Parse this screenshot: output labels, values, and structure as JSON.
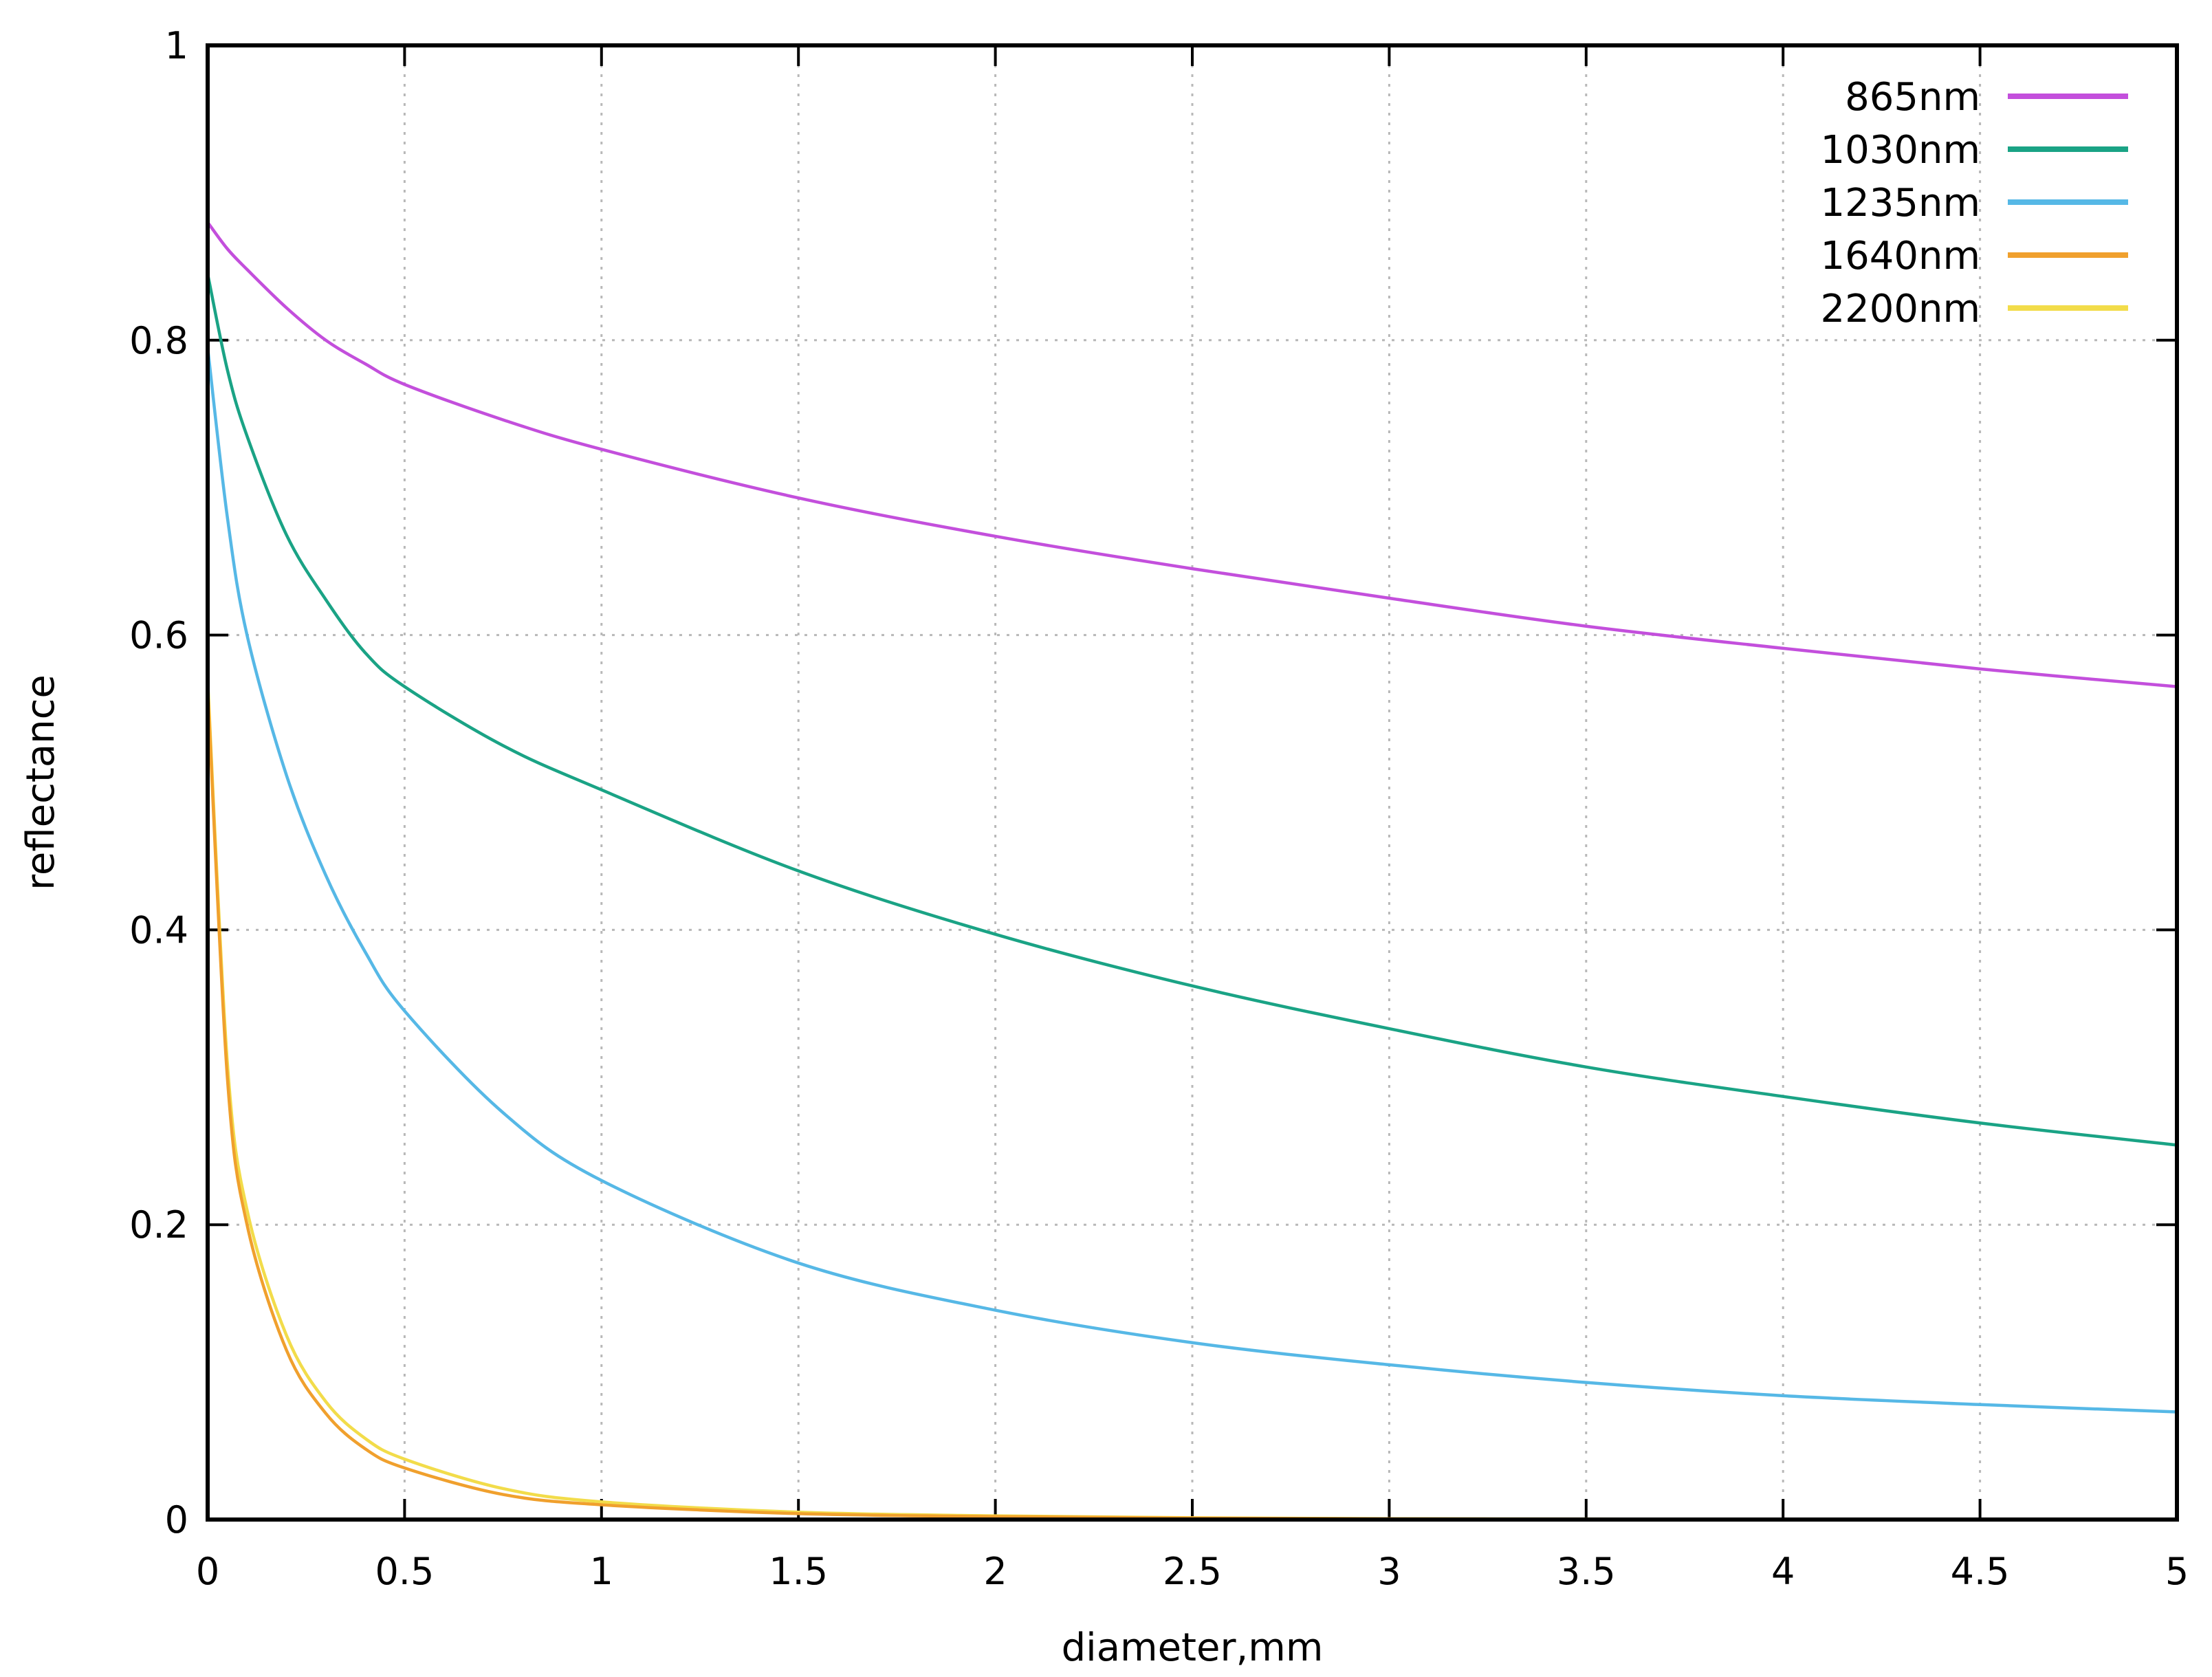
{
  "chart_data": {
    "type": "line",
    "title": "",
    "xlabel": "diameter,mm",
    "ylabel": "reflectance",
    "xlim": [
      0,
      5
    ],
    "ylim": [
      0,
      1
    ],
    "x_ticks": [
      "0",
      "0.5",
      "1",
      "1.5",
      "2",
      "2.5",
      "3",
      "3.5",
      "4",
      "4.5",
      "5"
    ],
    "y_ticks": [
      "0",
      "0.2",
      "0.4",
      "0.6",
      "0.8",
      "1"
    ],
    "grid": true,
    "legend_position": "top-right",
    "x": [
      0,
      0.05,
      0.1,
      0.2,
      0.3,
      0.4,
      0.5,
      0.75,
      1,
      1.5,
      2,
      2.5,
      3,
      3.5,
      4,
      4.5,
      5
    ],
    "series": [
      {
        "name": "865nm",
        "color": "#c34fdc",
        "values": [
          0.88,
          0.862,
          0.848,
          0.822,
          0.8,
          0.784,
          0.77,
          0.746,
          0.726,
          0.693,
          0.667,
          0.645,
          0.625,
          0.606,
          0.591,
          0.577,
          0.565
        ]
      },
      {
        "name": "1030nm",
        "color": "#1aa385",
        "values": [
          0.845,
          0.78,
          0.735,
          0.668,
          0.624,
          0.588,
          0.565,
          0.525,
          0.495,
          0.44,
          0.397,
          0.362,
          0.333,
          0.307,
          0.287,
          0.269,
          0.254
        ]
      },
      {
        "name": "1235nm",
        "color": "#56b8e6",
        "values": [
          0.795,
          0.68,
          0.6,
          0.505,
          0.437,
          0.385,
          0.345,
          0.276,
          0.23,
          0.174,
          0.142,
          0.12,
          0.105,
          0.093,
          0.084,
          0.078,
          0.073
        ]
      },
      {
        "name": "1640nm",
        "color": "#f0a02d",
        "values": [
          0.565,
          0.3,
          0.2,
          0.115,
          0.072,
          0.048,
          0.035,
          0.017,
          0.01,
          0.004,
          0.002,
          0.001,
          0.0005,
          0.0003,
          0.0002,
          0.0001,
          0.0001
        ]
      },
      {
        "name": "2200nm",
        "color": "#f2dc4a",
        "values": [
          0.57,
          0.31,
          0.21,
          0.125,
          0.08,
          0.055,
          0.041,
          0.021,
          0.012,
          0.005,
          0.0025,
          0.0012,
          0.0006,
          0.0004,
          0.0002,
          0.0001,
          0.0001
        ]
      }
    ]
  }
}
